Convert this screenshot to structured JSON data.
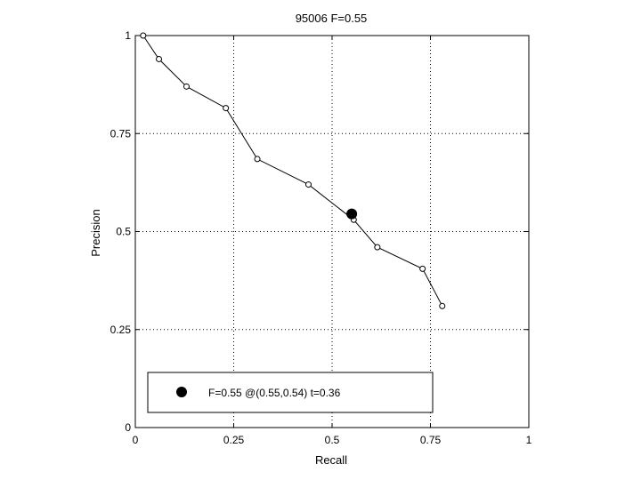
{
  "chart_data": {
    "type": "line",
    "title": "95006 F=0.55",
    "xlabel": "Recall",
    "ylabel": "Precision",
    "xlim": [
      0,
      1
    ],
    "ylim": [
      0,
      1
    ],
    "grid": true,
    "xticks": [
      0,
      0.25,
      0.5,
      0.75,
      1
    ],
    "yticks": [
      0,
      0.25,
      0.5,
      0.75,
      1
    ],
    "xtick_labels": [
      "0",
      "0.25",
      "0.5",
      "0.75",
      "1"
    ],
    "ytick_labels": [
      "0",
      "0.25",
      "0.5",
      "0.75",
      "1"
    ],
    "series": [
      {
        "x": [
          0.02,
          0.06,
          0.13,
          0.23,
          0.31,
          0.44,
          0.555,
          0.615,
          0.73,
          0.78
        ],
        "y": [
          1.0,
          0.94,
          0.87,
          0.815,
          0.685,
          0.62,
          0.53,
          0.46,
          0.405,
          0.31
        ]
      }
    ],
    "highlight_point": {
      "x": 0.55,
      "y": 0.545
    },
    "legend": {
      "position": "bottom",
      "text": "F=0.55 @(0.55,0.54) t=0.36"
    }
  }
}
